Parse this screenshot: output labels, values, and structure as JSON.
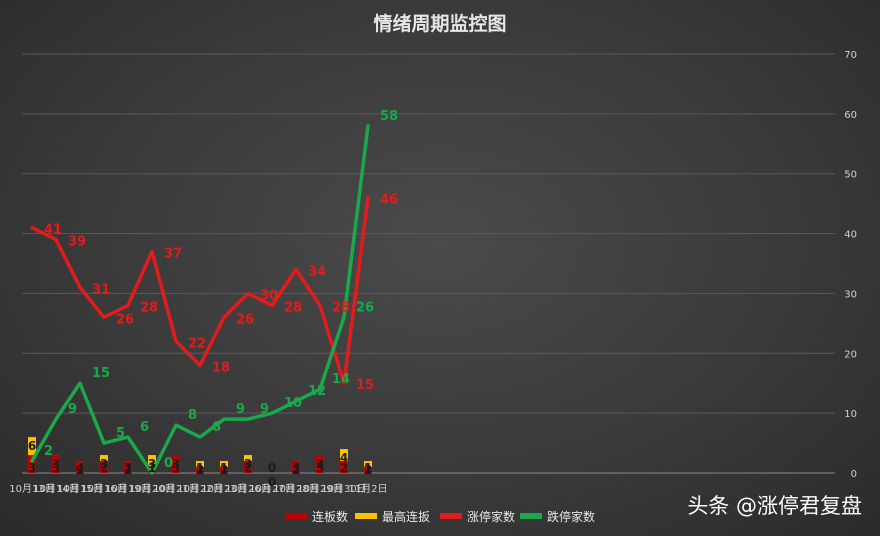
{
  "watermark": "头条 @涨停君复盘",
  "colors": {
    "limit_board": "#c00000",
    "max_board": "#ffc000",
    "limit_up": "#e31b1b",
    "limit_down": "#1aa84a"
  },
  "chart_data": {
    "type": "bar+line",
    "title": "情绪周期监控图",
    "categories": [
      "10月13日",
      "10月14日",
      "10月15日",
      "10月16日",
      "10月19日",
      "10月20日",
      "10月21日",
      "10月22日",
      "10月23日",
      "10月26日",
      "10月27日",
      "10月28日",
      "10月29日",
      "10月30日",
      "11月2日"
    ],
    "ylim": [
      0,
      70
    ],
    "yticks": [
      0,
      10,
      20,
      30,
      40,
      50,
      60,
      70
    ],
    "grid": true,
    "legend_position": "bottom",
    "series": [
      {
        "name": "连板数",
        "type": "bar",
        "values": [
          3,
          3,
          4,
          2,
          2,
          1,
          3,
          1,
          1,
          2,
          0,
          3,
          5,
          2,
          1
        ]
      },
      {
        "name": "最高连扳",
        "type": "bar",
        "values": [
          6,
          3,
          2,
          3,
          2,
          3,
          3,
          2,
          2,
          3,
          0,
          2,
          3,
          4,
          2
        ]
      },
      {
        "name": "涨停家数",
        "type": "line",
        "values": [
          41,
          39,
          31,
          26,
          28,
          37,
          22,
          18,
          26,
          30,
          28,
          34,
          28,
          15,
          46
        ]
      },
      {
        "name": "跌停家数",
        "type": "line",
        "values": [
          2,
          9,
          15,
          5,
          6,
          0,
          8,
          6,
          9,
          9,
          10,
          12,
          14,
          26,
          58
        ]
      }
    ]
  }
}
